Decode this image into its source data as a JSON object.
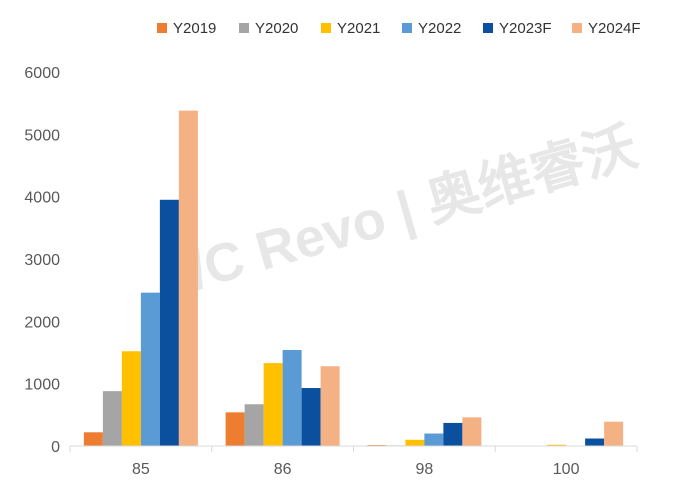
{
  "chart_data": {
    "type": "bar",
    "categories": [
      "85",
      "86",
      "98",
      "100"
    ],
    "series": [
      {
        "name": "Y2019",
        "color": "#ED7D31",
        "values": [
          220,
          540,
          15,
          0
        ]
      },
      {
        "name": "Y2020",
        "color": "#A5A5A5",
        "values": [
          880,
          670,
          10,
          0
        ]
      },
      {
        "name": "Y2021",
        "color": "#FFC000",
        "values": [
          1520,
          1330,
          100,
          20
        ]
      },
      {
        "name": "Y2022",
        "color": "#5B9BD5",
        "values": [
          2460,
          1540,
          200,
          0
        ]
      },
      {
        "name": "Y2023F",
        "color": "#0B4F9F",
        "values": [
          3950,
          930,
          370,
          120
        ]
      },
      {
        "name": "Y2024F",
        "color": "#F4B183",
        "values": [
          5380,
          1280,
          460,
          390
        ]
      }
    ],
    "yticks": [
      0,
      1000,
      2000,
      3000,
      4000,
      5000,
      6000
    ],
    "ylim": [
      0,
      6000
    ],
    "grid": false,
    "legend_position": "top-right",
    "axis_color": "#D9D9D9",
    "tick_color": "#595959",
    "watermark": {
      "text": "/C Revo | 奥维睿沃",
      "color": "#E7E7E7"
    }
  }
}
